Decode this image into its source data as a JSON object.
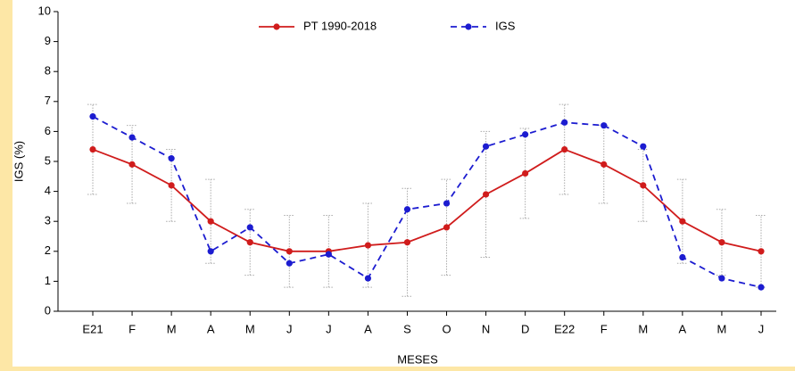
{
  "chart_data": {
    "type": "line",
    "x_label": "MESES",
    "y_label": "IGS (%)",
    "categories": [
      "E21",
      "F",
      "M",
      "A",
      "M",
      "J",
      "J",
      "A",
      "S",
      "O",
      "N",
      "D",
      "E22",
      "F",
      "M",
      "A",
      "M",
      "J"
    ],
    "series": [
      {
        "name": "PT 1990-2018",
        "color": "#d01c1c",
        "dash": false,
        "values": [
          5.4,
          4.9,
          4.2,
          3.0,
          2.3,
          2.0,
          2.0,
          2.2,
          2.3,
          2.8,
          3.9,
          4.6,
          5.4,
          4.9,
          4.2,
          3.0,
          2.3,
          2.0
        ],
        "range_low": [
          3.9,
          3.6,
          3.0,
          1.6,
          1.2,
          0.8,
          0.8,
          0.8,
          0.5,
          1.2,
          1.8,
          3.1,
          3.9,
          3.6,
          3.0,
          1.6,
          1.2,
          0.8
        ],
        "range_high": [
          6.9,
          6.2,
          5.4,
          4.4,
          3.4,
          3.2,
          3.2,
          3.6,
          4.1,
          4.4,
          6.0,
          6.1,
          6.9,
          6.2,
          5.4,
          4.4,
          3.4,
          3.2
        ]
      },
      {
        "name": "IGS",
        "color": "#1c1cd0",
        "dash": true,
        "values": [
          6.5,
          5.8,
          5.1,
          2.0,
          2.8,
          1.6,
          1.9,
          1.1,
          3.4,
          3.6,
          5.5,
          5.9,
          6.3,
          6.2,
          5.5,
          1.8,
          1.1,
          0.8
        ]
      }
    ],
    "range_color": "#aaaaaa",
    "ylim": [
      0,
      10
    ],
    "yticks": [
      0,
      1,
      2,
      3,
      4,
      5,
      6,
      7,
      8,
      9,
      10
    ]
  }
}
